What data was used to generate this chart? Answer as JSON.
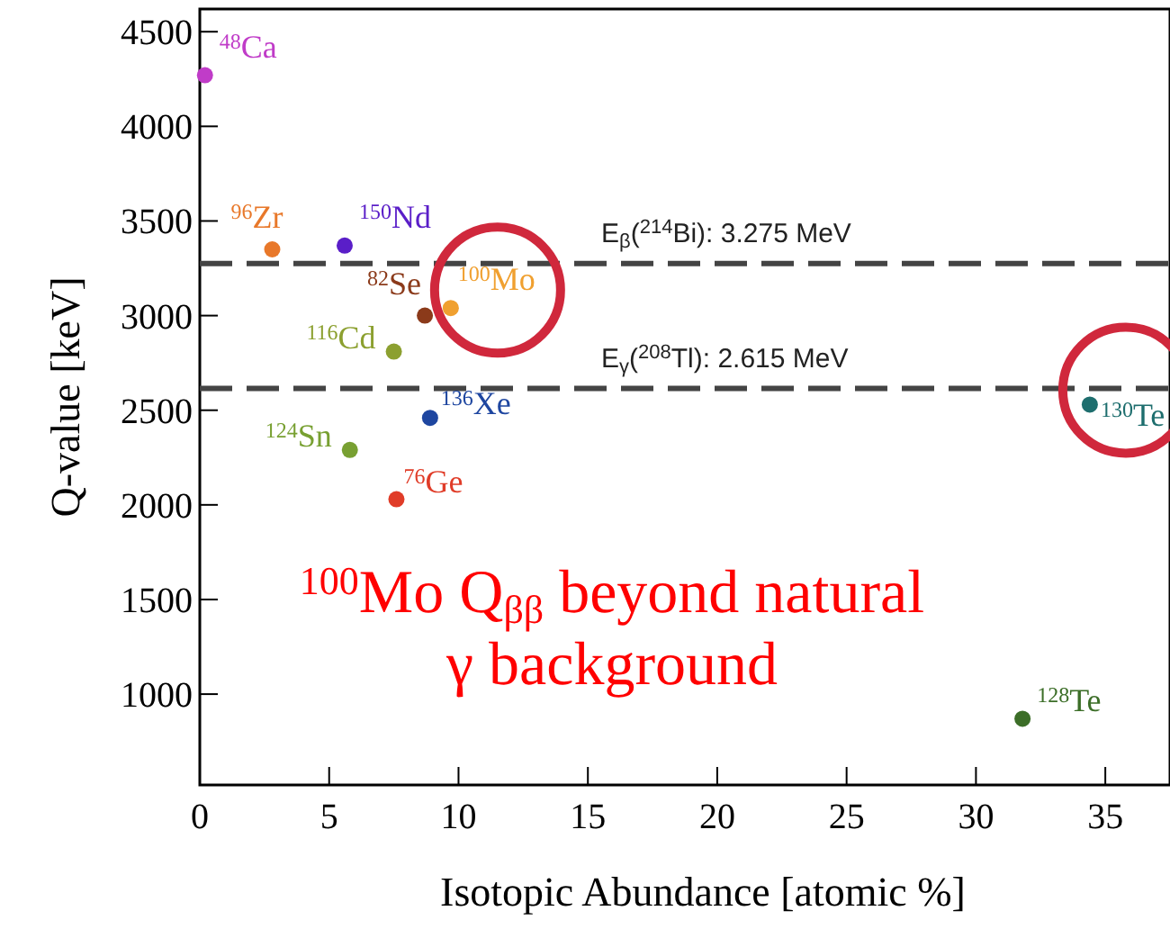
{
  "chart_data": {
    "type": "scatter",
    "xlabel": "Isotopic Abundance [atomic %]",
    "ylabel": "Q-value [keV]",
    "xlim": [
      0,
      37.5
    ],
    "ylim": [
      520,
      4620
    ],
    "xticks": [
      0,
      5,
      10,
      15,
      20,
      25,
      30,
      35
    ],
    "yticks": [
      1000,
      1500,
      2000,
      2500,
      3000,
      3500,
      4000,
      4500
    ],
    "grid": false,
    "marker": "circle",
    "series": [
      {
        "name": "$^{48}$Ca",
        "color": "#c03cc8",
        "x": [
          0.2
        ],
        "values": [
          4270
        ]
      },
      {
        "name": "$^{96}$Zr",
        "color": "#e8782a",
        "x": [
          2.8
        ],
        "values": [
          3350
        ]
      },
      {
        "name": "$^{150}$Nd",
        "color": "#5a1ec8",
        "x": [
          5.6
        ],
        "values": [
          3370
        ]
      },
      {
        "name": "$^{82}$Se",
        "color": "#8b3a1a",
        "x": [
          8.7
        ],
        "values": [
          3000
        ]
      },
      {
        "name": "$^{100}$Mo",
        "color": "#f0a030",
        "x": [
          9.7
        ],
        "values": [
          3040
        ]
      },
      {
        "name": "$^{116}$Cd",
        "color": "#8ca030",
        "x": [
          7.5
        ],
        "values": [
          2810
        ]
      },
      {
        "name": "$^{136}$Xe",
        "color": "#1e46a0",
        "x": [
          8.9
        ],
        "values": [
          2460
        ]
      },
      {
        "name": "$^{124}$Sn",
        "color": "#78a032",
        "x": [
          5.8
        ],
        "values": [
          2290
        ]
      },
      {
        "name": "$^{76}$Ge",
        "color": "#e03c28",
        "x": [
          7.6
        ],
        "values": [
          2030
        ]
      },
      {
        "name": "$^{130}$Te",
        "color": "#1e6e6e",
        "x": [
          34.4
        ],
        "values": [
          2530
        ]
      },
      {
        "name": "$^{128}$Te",
        "color": "#3c6e28",
        "x": [
          31.8
        ],
        "values": [
          870
        ]
      }
    ],
    "ref_lines": [
      {
        "axis": "y",
        "value": 3275,
        "label": "E$_{β}$($^{214}$Bi): 3.275 MeV",
        "color": "#444444",
        "line_style": "dashed"
      },
      {
        "axis": "y",
        "value": 2615,
        "label": "E$_{γ}$($^{208}$Tl): 2.615 MeV",
        "color": "#444444",
        "line_style": "dashed"
      }
    ],
    "annotations": [
      "$^{100}$Mo Q$_{ββ}$ beyond natural\nγ background"
    ]
  }
}
